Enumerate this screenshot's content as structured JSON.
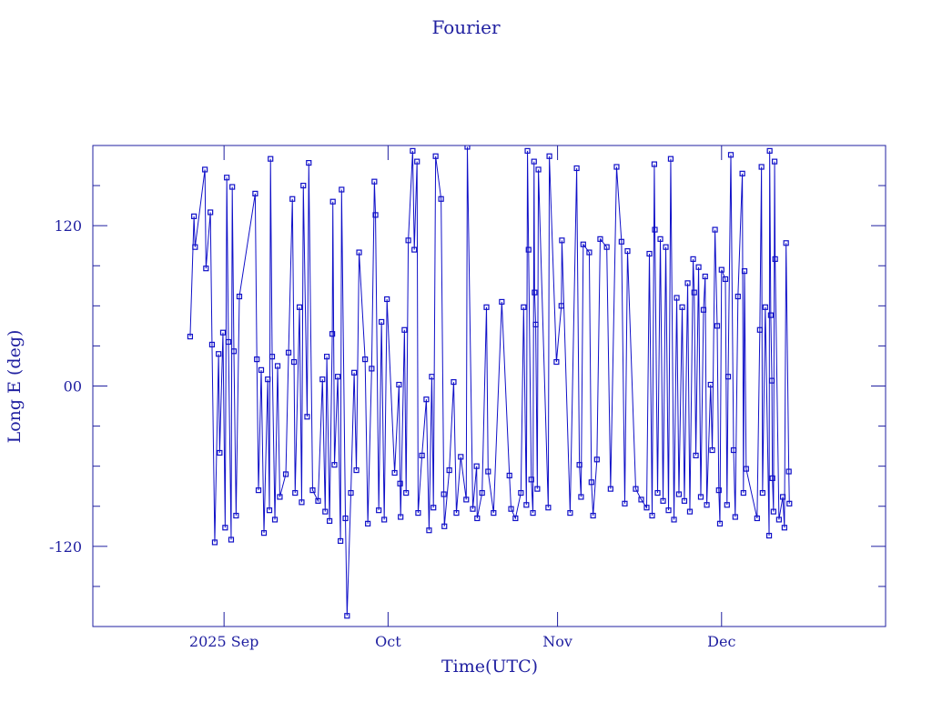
{
  "chart_data": {
    "type": "line",
    "title": "Fourier",
    "x_label": "Time(UTC)",
    "y_label": "Long E (deg)",
    "color": "#1010c8",
    "xlim": [
      -24,
      121
    ],
    "ylim": [
      -180,
      180
    ],
    "xticks": [
      {
        "value": 0,
        "label": "2025 Sep"
      },
      {
        "value": 30,
        "label": "Oct"
      },
      {
        "value": 61,
        "label": "Nov"
      },
      {
        "value": 91,
        "label": "Dec"
      }
    ],
    "yticks": [
      -120,
      {
        "value": 0,
        "label": "00"
      },
      120
    ],
    "yminorticks": [
      -150,
      -90,
      -60,
      -30,
      30,
      60,
      90,
      150
    ],
    "x": [
      -6.2,
      -5.5,
      -5.3,
      -3.5,
      -3.3,
      -2.5,
      -2.2,
      -1.7,
      -1,
      -0.8,
      -0.2,
      0.2,
      0.5,
      0.8,
      1.3,
      1.5,
      1.8,
      2.2,
      2.8,
      5.7,
      6,
      6.3,
      6.8,
      7.3,
      8,
      8.3,
      8.5,
      8.8,
      9.3,
      9.8,
      10.2,
      11.3,
      11.8,
      12.5,
      12.8,
      13,
      13.8,
      14.2,
      14.5,
      15.2,
      15.5,
      16.2,
      17.2,
      18,
      18.5,
      18.8,
      19.3,
      19.8,
      19.9,
      20.2,
      20.8,
      21.3,
      21.5,
      22.2,
      22.5,
      23.2,
      23.8,
      24.2,
      24.7,
      25.8,
      26.3,
      27,
      27.5,
      27.7,
      28.3,
      28.8,
      29.3,
      29.8,
      31.2,
      32,
      32.2,
      32.3,
      33,
      33.3,
      33.7,
      34.5,
      34.8,
      35.3,
      35.5,
      36.2,
      37,
      37.5,
      38,
      38.3,
      38.7,
      39.7,
      40.2,
      40.3,
      41.2,
      42,
      42.5,
      43.3,
      44.3,
      44.5,
      45.5,
      46.2,
      46.3,
      47.2,
      48,
      48.3,
      49.3,
      50.8,
      52.2,
      52.5,
      53.3,
      54.3,
      54.8,
      55.3,
      55.5,
      55.7,
      56.2,
      56.5,
      56.7,
      56.8,
      57,
      57.3,
      57.5,
      59.3,
      59.5,
      60.8,
      61.7,
      61.8,
      63.3,
      64.5,
      65,
      65.3,
      65.7,
      66.8,
      67.2,
      67.5,
      68.2,
      68.8,
      70,
      70.7,
      71.8,
      72.7,
      73.3,
      73.8,
      75.3,
      76.3,
      77.3,
      77.8,
      78.3,
      78.7,
      78.8,
      79.3,
      79.8,
      80.3,
      80.8,
      81.3,
      81.7,
      82.3,
      82.8,
      83.2,
      83.8,
      84.2,
      84.8,
      85.2,
      85.8,
      86,
      86.3,
      86.8,
      87.2,
      87.7,
      88,
      88.3,
      89,
      89.3,
      89.8,
      90.2,
      90.5,
      90.7,
      91,
      91.7,
      92,
      92.2,
      92.7,
      93.2,
      93.5,
      94,
      94.8,
      95,
      95.2,
      95.5,
      97.5,
      98,
      98.3,
      98.5,
      99,
      99.7,
      99.8,
      100,
      100.2,
      100.3,
      100.5,
      100.7,
      100.8,
      101.5,
      102.2,
      102.5,
      102.8,
      103.3,
      103.4
    ],
    "values": [
      37,
      127,
      104,
      162,
      88,
      130,
      31,
      -117,
      24,
      -50,
      40,
      -106,
      156,
      33,
      -115,
      149,
      26,
      -97,
      67,
      144,
      20,
      -78,
      12,
      -110,
      5,
      -93,
      170,
      22,
      -100,
      15,
      -83,
      -66,
      25,
      140,
      18,
      -80,
      59,
      -87,
      150,
      -23,
      167,
      -78,
      -86,
      5,
      -94,
      22,
      -101,
      39,
      138,
      -59,
      7,
      -116,
      147,
      -99,
      -172,
      -80,
      10,
      -63,
      100,
      20,
      -103,
      13,
      153,
      128,
      -93,
      48,
      -100,
      65,
      -65,
      1,
      -73,
      -98,
      42,
      -80,
      109,
      176,
      102,
      168,
      -95,
      -52,
      -10,
      -108,
      7,
      -91,
      172,
      140,
      -81,
      -105,
      -63,
      3,
      -95,
      -53,
      -85,
      179,
      -92,
      -60,
      -99,
      -80,
      59,
      -64,
      -95,
      63,
      -67,
      -92,
      -99,
      -80,
      59,
      -89,
      176,
      102,
      -70,
      -95,
      168,
      70,
      46,
      -77,
      162,
      -91,
      172,
      18,
      60,
      109,
      -95,
      163,
      -59,
      -83,
      106,
      100,
      -72,
      -97,
      -55,
      110,
      104,
      -77,
      164,
      108,
      -88,
      101,
      -77,
      -85,
      -91,
      99,
      -97,
      166,
      117,
      -80,
      110,
      -86,
      104,
      -93,
      170,
      -100,
      66,
      -81,
      59,
      -86,
      77,
      -94,
      95,
      70,
      -52,
      89,
      -83,
      57,
      82,
      -89,
      1,
      -48,
      117,
      45,
      -78,
      -103,
      87,
      80,
      -89,
      7,
      173,
      -48,
      -98,
      67,
      159,
      -80,
      86,
      -62,
      -99,
      42,
      164,
      -80,
      59,
      -112,
      176,
      53,
      4,
      -69,
      -94,
      168,
      95,
      -100,
      -83,
      -106,
      107,
      -64,
      -88
    ]
  }
}
